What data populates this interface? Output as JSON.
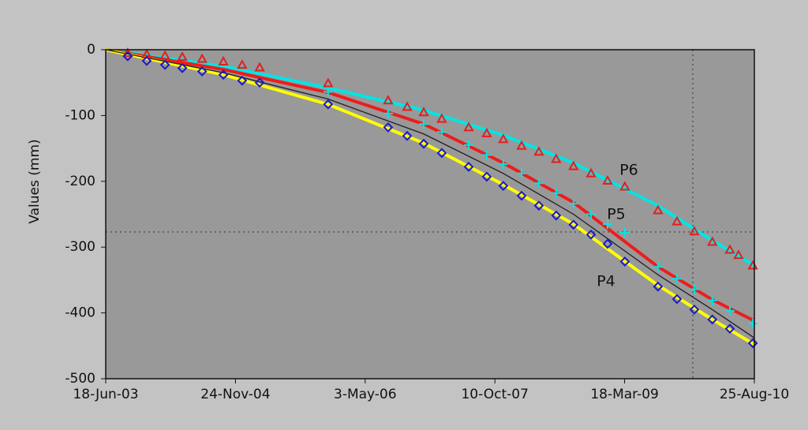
{
  "chart_data": {
    "type": "line",
    "y_label": "Values (mm)",
    "xlim": [
      "2003-06-18",
      "2010-08-25"
    ],
    "xticks": [
      {
        "value": "2003-06-18",
        "label": "18-Jun-03"
      },
      {
        "value": "2004-11-24",
        "label": "24-Nov-04"
      },
      {
        "value": "2006-05-03",
        "label": "3-May-06"
      },
      {
        "value": "2007-10-10",
        "label": "10-Oct-07"
      },
      {
        "value": "2009-03-18",
        "label": "18-Mar-09"
      },
      {
        "value": "2010-08-25",
        "label": "25-Aug-10"
      }
    ],
    "ylim": [
      -500,
      0
    ],
    "yticks": [
      0,
      -100,
      -200,
      -300,
      -400,
      -500
    ],
    "series": [
      {
        "style": "line",
        "color": "#00e5e5",
        "width": 4,
        "x": [
          "2003-06-18",
          "2004-10-06",
          "2005-12-04",
          "2006-12-26",
          "2007-11-13",
          "2008-08-23",
          "2009-07-31",
          "2010-03-08",
          "2010-08-25"
        ],
        "values": [
          0,
          -25,
          -58,
          -92,
          -130,
          -172,
          -237,
          -290,
          -328
        ]
      },
      {
        "style": "line",
        "color": "#ee1c1c",
        "width": 4,
        "x": [
          "2003-06-18",
          "2004-10-06",
          "2005-12-04",
          "2006-12-26",
          "2007-11-13",
          "2008-08-23",
          "2009-07-31",
          "2010-03-08",
          "2010-08-25"
        ],
        "values": [
          0,
          -30,
          -65,
          -113,
          -172,
          -232,
          -330,
          -380,
          -412
        ]
      },
      {
        "style": "line",
        "color": "#ffff00",
        "width": 4,
        "x": [
          "2003-06-18",
          "2004-10-06",
          "2005-12-04",
          "2006-12-26",
          "2007-11-13",
          "2008-08-23",
          "2009-07-31",
          "2010-03-08",
          "2010-08-25"
        ],
        "values": [
          0,
          -38,
          -83,
          -142,
          -205,
          -265,
          -358,
          -410,
          -448
        ]
      },
      {
        "style": "line",
        "color": "#202020",
        "width": 1.3,
        "x": [
          "2003-06-18",
          "2004-10-06",
          "2005-12-04",
          "2006-12-26",
          "2007-11-13",
          "2008-08-23",
          "2009-07-31",
          "2010-03-08",
          "2010-08-25"
        ],
        "values": [
          0,
          -35,
          -75,
          -128,
          -188,
          -250,
          -342,
          -395,
          -438
        ]
      },
      {
        "name": "P6",
        "style": "marker",
        "marker": "triangle",
        "color": "#e02020",
        "x": [
          "2003-09-15",
          "2003-12-01",
          "2004-02-13",
          "2004-04-23",
          "2004-07-12",
          "2004-10-06",
          "2004-12-21",
          "2005-03-02",
          "2005-12-04",
          "2006-08-04",
          "2006-10-20",
          "2006-12-26",
          "2007-03-09",
          "2007-06-26",
          "2007-09-07",
          "2007-11-13",
          "2008-01-26",
          "2008-04-05",
          "2008-06-14",
          "2008-08-23",
          "2008-11-02",
          "2009-01-08",
          "2009-03-19",
          "2009-07-31",
          "2009-10-16",
          "2009-12-25",
          "2010-03-08",
          "2010-05-18",
          "2010-06-22",
          "2010-08-19"
        ],
        "values": [
          -5,
          -7,
          -9,
          -11,
          -14,
          -18,
          -23,
          -27,
          -51,
          -77,
          -87,
          -95,
          -105,
          -118,
          -127,
          -136,
          -146,
          -155,
          -166,
          -177,
          -188,
          -199,
          -208,
          -244,
          -261,
          -276,
          -292,
          -304,
          -312,
          -328
        ]
      },
      {
        "name": "P5",
        "style": "marker",
        "marker": "plus",
        "color": "#00e5e5",
        "x": [
          "2005-12-04",
          "2006-08-04",
          "2006-12-26",
          "2007-03-09",
          "2007-06-26",
          "2007-09-07",
          "2007-11-13",
          "2008-01-26",
          "2008-04-05",
          "2008-06-14",
          "2008-08-23",
          "2008-11-02",
          "2009-01-08",
          "2009-03-19",
          "2009-07-31",
          "2009-10-16",
          "2009-12-25",
          "2010-03-08",
          "2010-05-18",
          "2010-08-19"
        ],
        "values": [
          -64,
          -97,
          -113,
          -125,
          -145,
          -160,
          -174,
          -188,
          -203,
          -218,
          -234,
          -250,
          -265,
          -278,
          -330,
          -348,
          -364,
          -381,
          -397,
          -416
        ]
      },
      {
        "name": "P4",
        "style": "marker",
        "marker": "diamond",
        "color": "#1a1acc",
        "x": [
          "2003-09-15",
          "2003-12-01",
          "2004-02-13",
          "2004-04-23",
          "2004-07-12",
          "2004-10-06",
          "2004-12-21",
          "2005-03-02",
          "2005-12-04",
          "2006-08-04",
          "2006-10-20",
          "2006-12-26",
          "2007-03-09",
          "2007-06-26",
          "2007-09-07",
          "2007-11-13",
          "2008-01-26",
          "2008-04-05",
          "2008-06-14",
          "2008-08-23",
          "2008-11-02",
          "2009-01-08",
          "2009-03-19",
          "2009-07-31",
          "2009-10-16",
          "2009-12-25",
          "2010-03-08",
          "2010-05-18",
          "2010-08-19"
        ],
        "values": [
          -10,
          -17,
          -23,
          -28,
          -33,
          -38,
          -47,
          -50,
          -83,
          -118,
          -131,
          -143,
          -157,
          -178,
          -193,
          -207,
          -222,
          -237,
          -252,
          -266,
          -281,
          -295,
          -322,
          -360,
          -379,
          -395,
          -410,
          -424,
          -446
        ]
      }
    ]
  }
}
